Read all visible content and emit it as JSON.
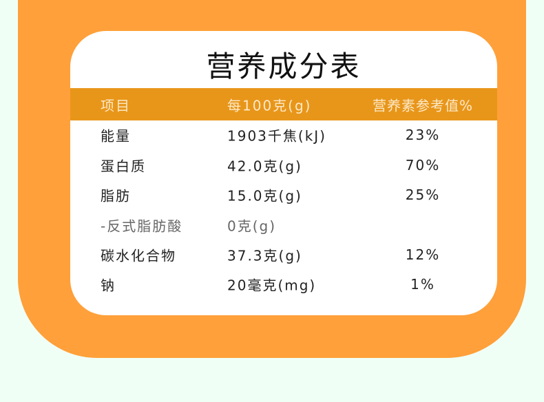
{
  "title": "营养成分表",
  "colors": {
    "background": "#f0fff6",
    "panel": "#ffa03a",
    "header": "#e8961a",
    "card": "#ffffff"
  },
  "header": {
    "item": "项目",
    "per100": "每100克(g)",
    "nrv": "营养素参考值%"
  },
  "rows": [
    {
      "item": "能量",
      "per100": "1903千焦(kJ)",
      "nrv": "23%"
    },
    {
      "item": "蛋白质",
      "per100": "42.0克(g)",
      "nrv": "70%"
    },
    {
      "item": "脂肪",
      "per100": "15.0克(g)",
      "nrv": "25%"
    },
    {
      "item": "-反式脂肪酸",
      "per100": "0克(g)",
      "nrv": ""
    },
    {
      "item": "碳水化合物",
      "per100": "37.3克(g)",
      "nrv": "12%"
    },
    {
      "item": "钠",
      "per100": "20毫克(mg)",
      "nrv": "1%"
    }
  ]
}
